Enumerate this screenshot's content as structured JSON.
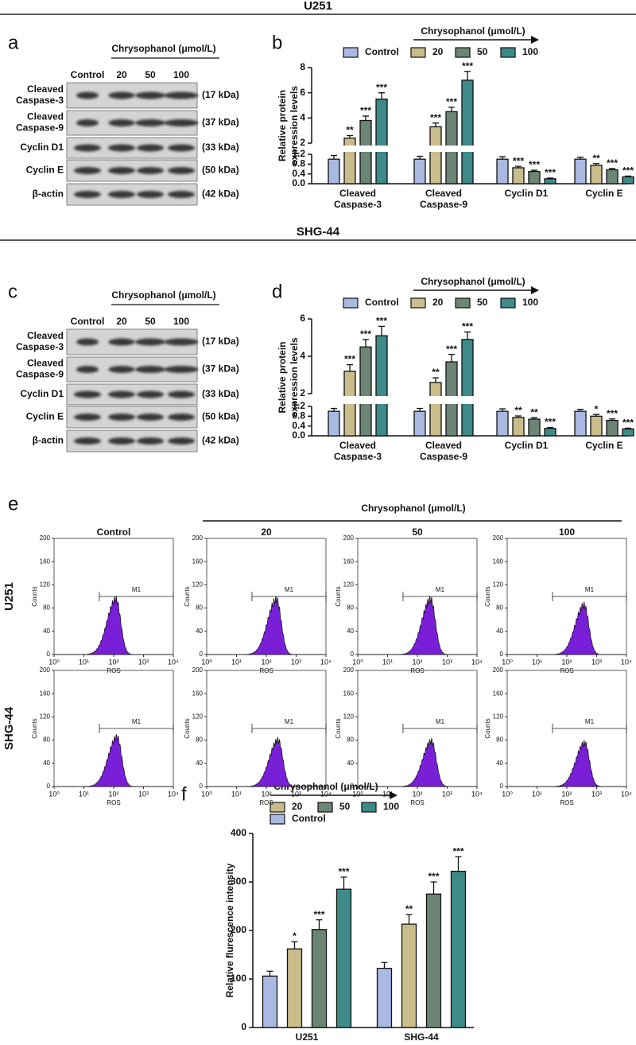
{
  "sections": [
    "U251",
    "SHG-44"
  ],
  "panel_labels": [
    "a",
    "b",
    "c",
    "d",
    "e",
    "f"
  ],
  "blots": [
    {
      "title": "Chrysophanol (μmol/L)",
      "lanes": [
        "Control",
        "20",
        "50",
        "100"
      ],
      "rows": [
        {
          "label": [
            "Cleaved",
            "Caspase-3"
          ],
          "size": "(17 kDa)"
        },
        {
          "label": [
            "Cleaved",
            "Caspase-9"
          ],
          "size": "(37 kDa)"
        },
        {
          "label": [
            "Cyclin D1"
          ],
          "size": "(33 kDa)"
        },
        {
          "label": [
            "Cyclin E"
          ],
          "size": "(50 kDa)"
        },
        {
          "label": [
            "β-actin"
          ],
          "size": "(42 kDa)"
        }
      ]
    },
    {
      "title": "Chrysophanol (μmol/L)",
      "lanes": [
        "Control",
        "20",
        "50",
        "100"
      ],
      "rows": [
        {
          "label": [
            "Cleaved",
            "Caspase-3"
          ],
          "size": "(17 kDa)"
        },
        {
          "label": [
            "Cleaved",
            "Caspase-9"
          ],
          "size": "(37 kDa)"
        },
        {
          "label": [
            "Cyclin D1"
          ],
          "size": "(33 kDa)"
        },
        {
          "label": [
            "Cyclin E"
          ],
          "size": "(50 kDa)"
        },
        {
          "label": [
            "β-actin"
          ],
          "size": "(42 kDa)"
        }
      ]
    }
  ],
  "chart_data": [
    {
      "type": "bar",
      "legend_title": "Chrysophanol (μmol/L)",
      "ylabel": [
        "Relative protein",
        "expression levels"
      ],
      "categories": [
        [
          "Cleaved",
          "Caspase-3"
        ],
        [
          "Cleaved",
          "Caspase-9"
        ],
        [
          "Cyclin D1"
        ],
        [
          "Cyclin E"
        ]
      ],
      "y_segments": [
        {
          "ylim": [
            0,
            1.2
          ],
          "yticks": [
            {
              "value": 0,
              "label": "0.0"
            },
            0.4,
            0.8,
            1.2
          ]
        },
        {
          "ylim": [
            2,
            8
          ],
          "yticks": [
            2,
            4,
            6,
            8
          ]
        }
      ],
      "series": [
        {
          "name": "Control",
          "color": "#a9b9e2",
          "values": [
            1,
            1,
            1,
            1
          ],
          "errors": [
            0.15,
            0.12,
            0.1,
            0.08
          ],
          "annotations": [
            null,
            null,
            null,
            null
          ]
        },
        {
          "name": "20",
          "color": "#c8bd8b",
          "values": [
            2.4,
            3.3,
            0.65,
            0.75
          ],
          "errors": [
            0.2,
            0.3,
            0.06,
            0.07
          ],
          "annotations": [
            "**",
            "***",
            "***",
            "**"
          ]
        },
        {
          "name": "50",
          "color": "#6c8576",
          "values": [
            3.8,
            4.5,
            0.5,
            0.57
          ],
          "errors": [
            0.35,
            0.35,
            0.05,
            0.05
          ],
          "annotations": [
            "***",
            "***",
            "***",
            "***"
          ]
        },
        {
          "name": "100",
          "color": "#3e8a88",
          "values": [
            5.5,
            7.0,
            0.2,
            0.28
          ],
          "errors": [
            0.5,
            0.7,
            0.03,
            0.03
          ],
          "annotations": [
            "***",
            "***",
            "***",
            "***"
          ]
        }
      ]
    },
    {
      "type": "bar",
      "legend_title": "Chrysophanol (μmol/L)",
      "ylabel": [
        "Relative protein",
        "expression levels"
      ],
      "categories": [
        [
          "Cleaved",
          "Caspase-3"
        ],
        [
          "Cleaved",
          "Caspase-9"
        ],
        [
          "Cyclin D1"
        ],
        [
          "Cyclin E"
        ]
      ],
      "y_segments": [
        {
          "ylim": [
            0,
            1.2
          ],
          "yticks": [
            {
              "value": 0,
              "label": "0.0"
            },
            0.4,
            0.8,
            1.2
          ]
        },
        {
          "ylim": [
            2,
            6
          ],
          "yticks": [
            2,
            4,
            6
          ]
        }
      ],
      "series": [
        {
          "name": "Control",
          "color": "#a9b9e2",
          "values": [
            1,
            1,
            1,
            1
          ],
          "errors": [
            0.12,
            0.12,
            0.1,
            0.08
          ],
          "annotations": [
            null,
            null,
            null,
            null
          ]
        },
        {
          "name": "20",
          "color": "#c8bd8b",
          "values": [
            3.2,
            2.6,
            0.75,
            0.8
          ],
          "errors": [
            0.35,
            0.25,
            0.06,
            0.07
          ],
          "annotations": [
            "***",
            "**",
            "**",
            "*"
          ]
        },
        {
          "name": "50",
          "color": "#6c8576",
          "values": [
            4.5,
            3.7,
            0.68,
            0.63
          ],
          "errors": [
            0.4,
            0.4,
            0.06,
            0.06
          ],
          "annotations": [
            "***",
            "***",
            "**",
            "***"
          ]
        },
        {
          "name": "100",
          "color": "#3e8a88",
          "values": [
            5.1,
            4.9,
            0.3,
            0.28
          ],
          "errors": [
            0.5,
            0.4,
            0.04,
            0.03
          ],
          "annotations": [
            "***",
            "***",
            "***",
            "***"
          ]
        }
      ]
    },
    {
      "type": "bar",
      "legend_title": "Chrysophanol (μmol/L)",
      "ylabel": "Relative flurescence intensity",
      "categories": [
        "U251",
        "SHG-44"
      ],
      "ylim": [
        0,
        400
      ],
      "yticks": [
        0,
        100,
        200,
        300,
        400
      ],
      "series": [
        {
          "name": "Control",
          "color": "#a9b9e2",
          "values": [
            106,
            122
          ],
          "errors": [
            10,
            12
          ],
          "annotations": [
            null,
            null
          ]
        },
        {
          "name": "20",
          "color": "#c8bd8b",
          "values": [
            162,
            213
          ],
          "errors": [
            15,
            20
          ],
          "annotations": [
            "*",
            "**"
          ]
        },
        {
          "name": "50",
          "color": "#6c8576",
          "values": [
            202,
            275
          ],
          "errors": [
            20,
            25
          ],
          "annotations": [
            "***",
            "***"
          ]
        },
        {
          "name": "100",
          "color": "#3e8a88",
          "values": [
            285,
            322
          ],
          "errors": [
            25,
            30
          ],
          "annotations": [
            "***",
            "***"
          ]
        }
      ]
    }
  ],
  "flow": {
    "title": "Chrysophanol (μmol/L)",
    "columns": [
      "Control",
      "20",
      "50",
      "100"
    ],
    "rows": [
      "U251",
      "SHG-44"
    ],
    "xlabel": "ROS",
    "ylabel": "Counts",
    "xlim": [
      1,
      10000
    ],
    "xticks": [
      {
        "value": 1,
        "label": "10⁰"
      },
      {
        "value": 10,
        "label": "10¹"
      },
      {
        "value": 100,
        "label": "10²"
      },
      {
        "value": 1000,
        "label": "10³"
      },
      {
        "value": 10000,
        "label": "10⁴"
      }
    ],
    "ylim": [
      0,
      200
    ],
    "yticks": [
      0,
      40,
      80,
      120,
      160,
      200
    ],
    "gate": {
      "label": "M1",
      "range": [
        33,
        10000
      ]
    },
    "peaks": [
      [
        [
          120,
          95
        ],
        [
          220,
          95
        ],
        [
          280,
          95
        ],
        [
          380,
          85
        ]
      ],
      [
        [
          130,
          85
        ],
        [
          250,
          80
        ],
        [
          300,
          78
        ],
        [
          400,
          75
        ]
      ]
    ]
  }
}
